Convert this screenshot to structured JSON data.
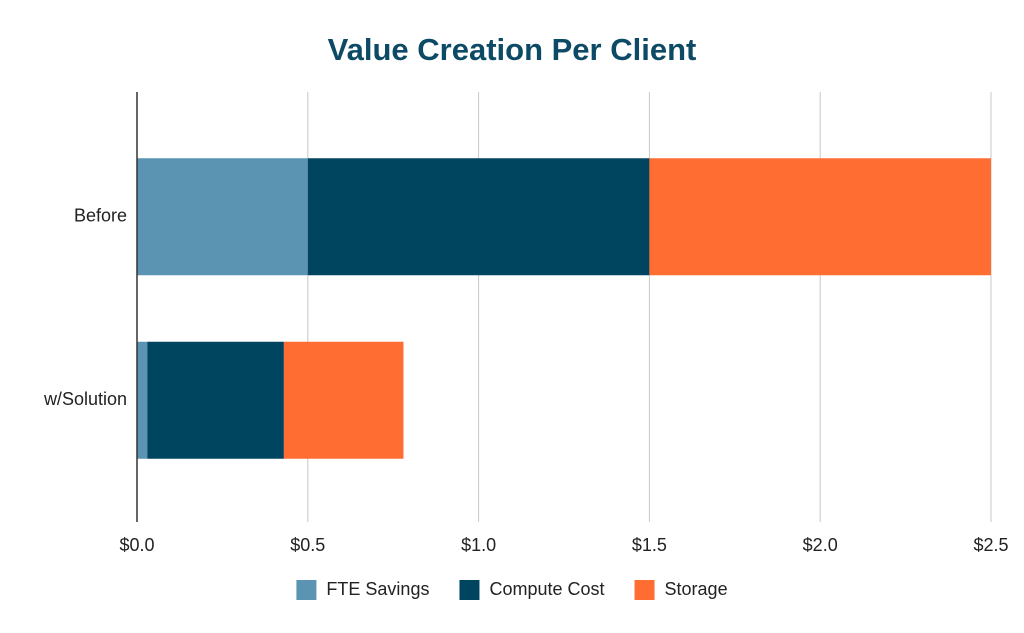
{
  "chart_data": {
    "type": "stacked-bar-horizontal",
    "title": "Value Creation Per Client",
    "categories": [
      "Before",
      "w/Solution"
    ],
    "series": [
      {
        "name": "FTE Savings",
        "color": "#5b93b2",
        "values": [
          0.5,
          0.03
        ]
      },
      {
        "name": "Compute Cost",
        "color": "#004560",
        "values": [
          1.0,
          0.4
        ]
      },
      {
        "name": "Storage",
        "color": "#ff6d33",
        "values": [
          1.0,
          0.35
        ]
      }
    ],
    "xlim": [
      0,
      2.5
    ],
    "xticks": [
      {
        "value": 0,
        "label": "$0.0"
      },
      {
        "value": 0.5,
        "label": "$0.5"
      },
      {
        "value": 1,
        "label": "$1.0"
      },
      {
        "value": 1.5,
        "label": "$1.5"
      },
      {
        "value": 2,
        "label": "$2.0"
      },
      {
        "value": 2.5,
        "label": "$2.5"
      }
    ],
    "grid": true,
    "legend": "bottom"
  }
}
